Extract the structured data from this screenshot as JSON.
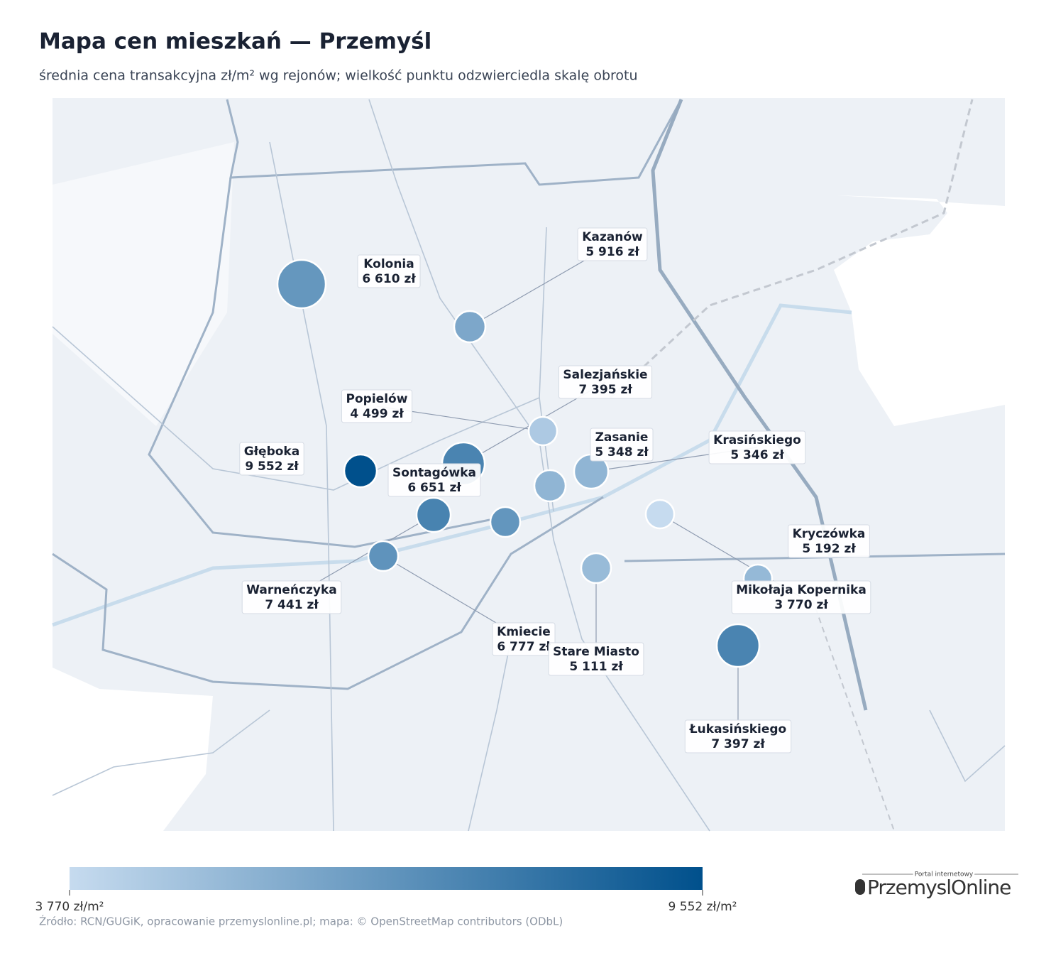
{
  "chart_data": {
    "type": "bubble_map",
    "title": "Mapa cen mieszkań — Przemyśl",
    "subtitle": "średnia cena transakcyjna zł/m² wg rejonów; wielkość punktu odzwierciedla skalę obrotu",
    "categories": [
      "Kolonia",
      "Kazanów",
      "Salezjańskie",
      "Popielów",
      "Głęboka",
      "Zasanie",
      "Krasińskiego",
      "Sontagówka",
      "Warneńczyka",
      "Kmiecie",
      "Mikołaja Kopernika",
      "Kryczówka",
      "Stare Miasto",
      "Łukasińskiego"
    ],
    "values": [
      6610,
      5916,
      7395,
      4499,
      9552,
      5348,
      5346,
      6651,
      7441,
      6777,
      3770,
      5192,
      5111,
      7397
    ],
    "value_labels": [
      "6 610 zł",
      "5 916 zł",
      "7 395 zł",
      "4 499 zł",
      "9 552 zł",
      "5 348 zł",
      "5 346 zł",
      "6 651 zł",
      "7 441 zł",
      "6 777 zł",
      "3 770 zł",
      "5 192 zł",
      "5 111 zł",
      "7 397 zł"
    ],
    "colorbar": {
      "min": {
        "value": 3770,
        "label": "3 770 zł/m²"
      },
      "max": {
        "value": 9552,
        "label": "9 552 zł/m²"
      },
      "colors": [
        "#c6dbef",
        "#00508c"
      ]
    },
    "source": "Źródło: RCN/GUGiK, opracowanie przemyslonline.pl; mapa: © OpenStreetMap contributors (ODbL)"
  },
  "logo": {
    "tagline": "Portal internetowy",
    "name": "PrzemyslOnline"
  }
}
